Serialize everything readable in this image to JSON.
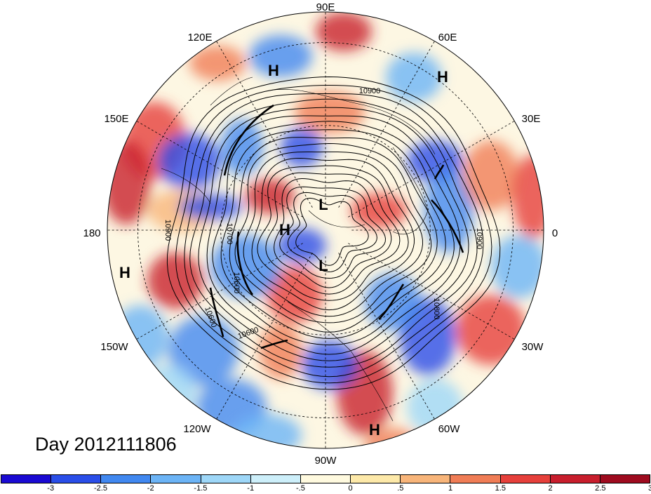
{
  "title": "Day 2012111806",
  "longitude_labels": [
    "90E",
    "60E",
    "30E",
    "0",
    "30W",
    "60W",
    "90W",
    "120W",
    "150W",
    "180",
    "150E",
    "120E"
  ],
  "pressure_systems": [
    {
      "label": "H",
      "name": "high-east-asia"
    },
    {
      "label": "H",
      "name": "high-europe-north"
    },
    {
      "label": "L",
      "name": "low-arctic"
    },
    {
      "label": "H",
      "name": "high-beaufort"
    },
    {
      "label": "L",
      "name": "low-canada"
    },
    {
      "label": "H",
      "name": "high-pacific"
    },
    {
      "label": "H",
      "name": "high-caribbean"
    }
  ],
  "contour_labels": [
    "10900",
    "10900",
    "10700",
    "10900",
    "10800",
    "10600",
    "10600",
    "10600"
  ],
  "colorbar": {
    "colors": [
      "#1a0ad2",
      "#2a4ee8",
      "#4188f0",
      "#6cb4f6",
      "#9ed7f8",
      "#cdeffa",
      "#fffadf",
      "#fde9a9",
      "#f8b57a",
      "#f07d56",
      "#e6403b",
      "#c81e2d",
      "#9e0b1f"
    ],
    "labels": [
      "-3",
      "-2.5",
      "-2",
      "-1.5",
      "-1",
      "-.5",
      "0",
      ".5",
      "1",
      "1.5",
      "2",
      "2.5",
      "3"
    ]
  }
}
